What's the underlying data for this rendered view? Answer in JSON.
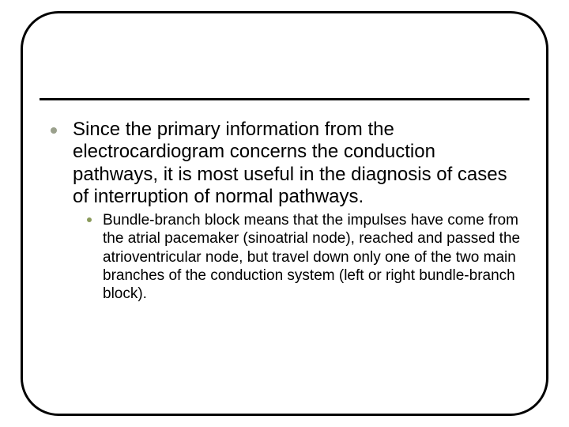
{
  "slide": {
    "frame": {
      "border_color": "#000000",
      "border_width": 3,
      "border_radius": 48,
      "background_color": "#ffffff"
    },
    "divider": {
      "color": "#000000",
      "thickness": 3
    },
    "bullets": [
      {
        "level": 1,
        "marker_color": "#9aa08c",
        "font_size": 24,
        "text_color": "#000000",
        "text": "Since the primary information from the electrocardiogram concerns the conduction pathways, it is most useful in the diagnosis of cases of interruption of normal pathways."
      }
    ],
    "sub_bullets": [
      {
        "level": 2,
        "marker_color": "#8a9a5b",
        "font_size": 19,
        "text_color": "#000000",
        "text": "Bundle-branch block means that the impulses have come from the atrial pacemaker (sinoatrial node), reached and passed the atrioventricular node, but travel down only one of the two main branches of the conduction system (left or right bundle-branch block)."
      }
    ]
  }
}
